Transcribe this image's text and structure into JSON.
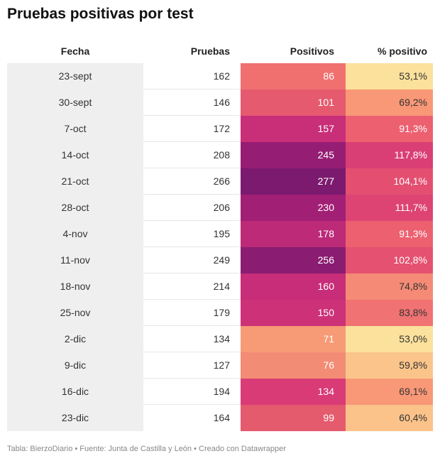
{
  "header": {
    "title": "Pruebas positivas por test"
  },
  "table": {
    "columns": [
      "Fecha",
      "Pruebas",
      "Positivos",
      "% positivo"
    ],
    "rows": [
      [
        "23-sept",
        "162",
        "86",
        "53,1%"
      ],
      [
        "30-sept",
        "146",
        "101",
        "69,2%"
      ],
      [
        "7-oct",
        "172",
        "157",
        "91,3%"
      ],
      [
        "14-oct",
        "208",
        "245",
        "117,8%"
      ],
      [
        "21-oct",
        "266",
        "277",
        "104,1%"
      ],
      [
        "28-oct",
        "206",
        "230",
        "111,7%"
      ],
      [
        "4-nov",
        "195",
        "178",
        "91,3%"
      ],
      [
        "11-nov",
        "249",
        "256",
        "102,8%"
      ],
      [
        "18-nov",
        "214",
        "160",
        "74,8%"
      ],
      [
        "25-nov",
        "179",
        "150",
        "83,8%"
      ],
      [
        "2-dic",
        "134",
        "71",
        "53,0%"
      ],
      [
        "9-dic",
        "127",
        "76",
        "59,8%"
      ],
      [
        "16-dic",
        "194",
        "134",
        "69,1%"
      ],
      [
        "23-dic",
        "164",
        "99",
        "60,4%"
      ]
    ],
    "cell_colors": [
      [
        "#f07070",
        "#fbe19b"
      ],
      [
        "#e55a6e",
        "#f89877"
      ],
      [
        "#c92e78",
        "#ec6070"
      ],
      [
        "#951d73",
        "#d93f74"
      ],
      [
        "#7b1a6e",
        "#e44f71"
      ],
      [
        "#a11f75",
        "#dd4473"
      ],
      [
        "#bc2a78",
        "#ec6070"
      ],
      [
        "#8a1c71",
        "#e55170"
      ],
      [
        "#c72d78",
        "#f58b76"
      ],
      [
        "#cd3178",
        "#f07272"
      ],
      [
        "#f79a76",
        "#fbe19b"
      ],
      [
        "#f38c74",
        "#fbc48a"
      ],
      [
        "#d93b76",
        "#f89877"
      ],
      [
        "#e55b6e",
        "#fbc38a"
      ]
    ]
  },
  "footer": {
    "text": "Tabla: BierzoDiario • Fuente: Junta de Castilla y León • Creado con Datawrapper"
  }
}
